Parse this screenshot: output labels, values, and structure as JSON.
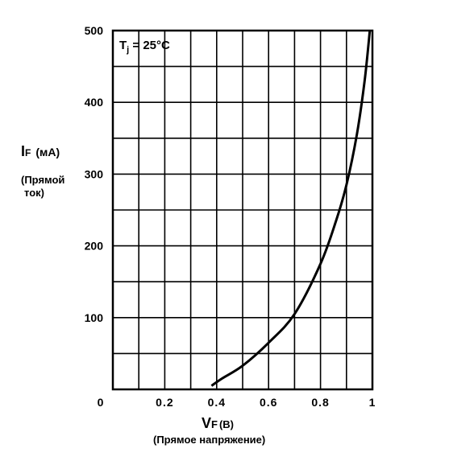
{
  "chart_data": {
    "type": "line",
    "x_axis": {
      "symbol": "V",
      "symbol_sub": "F",
      "unit": "(В)",
      "description": "(Прямое напряжение)",
      "range": [
        0,
        1
      ],
      "ticks": [
        0,
        0.1,
        0.2,
        0.3,
        0.4,
        0.5,
        0.6,
        0.7,
        0.8,
        0.9,
        1.0
      ],
      "tick_labels": [
        {
          "value": 0,
          "text": "0"
        },
        {
          "value": 0.2,
          "text": "0.2"
        },
        {
          "value": 0.4,
          "text": "0.4"
        },
        {
          "value": 0.6,
          "text": "0.6"
        },
        {
          "value": 0.8,
          "text": "0.8"
        },
        {
          "value": 1.0,
          "text": "1"
        }
      ]
    },
    "y_axis": {
      "symbol": "I",
      "symbol_sub": "F",
      "unit": "(мА)",
      "description_lines": [
        "(Прямой",
        "ток)"
      ],
      "range": [
        0,
        500
      ],
      "ticks": [
        0,
        50,
        100,
        150,
        200,
        250,
        300,
        350,
        400,
        450,
        500
      ],
      "tick_labels": [
        {
          "value": 100,
          "text": "100"
        },
        {
          "value": 200,
          "text": "200"
        },
        {
          "value": 300,
          "text": "300"
        },
        {
          "value": 400,
          "text": "400"
        },
        {
          "value": 500,
          "text": "500"
        }
      ]
    },
    "annotation": {
      "prefix": "T",
      "sub": "j",
      "text": " = 25°C"
    },
    "grid": true,
    "series": [
      {
        "x": [
          0.38,
          0.42,
          0.5,
          0.6,
          0.7,
          0.8,
          0.86,
          0.9,
          0.94,
          0.97,
          0.99
        ],
        "y": [
          5,
          15,
          33,
          65,
          105,
          175,
          235,
          285,
          355,
          430,
          500
        ]
      }
    ]
  }
}
